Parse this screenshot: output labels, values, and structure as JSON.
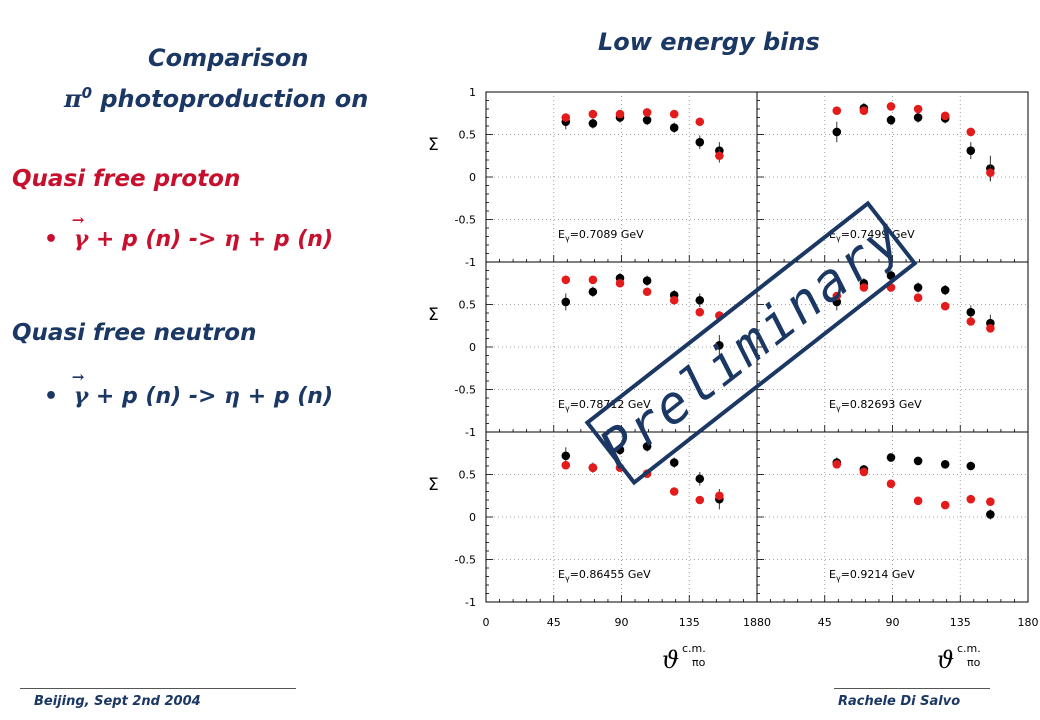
{
  "slide": {
    "top_title": "Low energy bins",
    "comparison_line1": "Comparison",
    "comparison_pi": "π",
    "comparison_sup": "0",
    "comparison_rest": " photoproduction on",
    "section1": "Quasi free proton",
    "section2": "Quasi free neutron",
    "bullet": "•",
    "reaction_gamma": "γ",
    "reaction_mid": " + p (n) -> ",
    "reaction_eta": "η",
    "reaction_end": " + p (n)",
    "watermark": "Preliminary",
    "footer_left": "Beijing, Sept 2nd 2004",
    "footer_right": "Rachele Di Salvo"
  },
  "colors": {
    "navy": "#1b3763",
    "red": "#c8102e",
    "black_series": "#000000",
    "red_series": "#e41b1b",
    "watermark": "#1b3763"
  },
  "chart_data": {
    "type": "scatter",
    "ylabel": "Σ",
    "xlabel_base": "ϑ",
    "xlabel_sup": "c.m.",
    "xlabel_sub": "πο",
    "xlim": [
      0,
      180
    ],
    "ylim": [
      -1,
      1
    ],
    "x_ticks": [
      "0",
      "45",
      "90",
      "135",
      "180"
    ],
    "x_ticks_right": [
      "80",
      "45",
      "90",
      "135",
      "180"
    ],
    "y_ticks": [
      "1",
      "0.5",
      "0",
      "-0.5",
      "-1"
    ],
    "panels": [
      {
        "energy_prefix": "E",
        "energy_sub": "γ",
        "energy_value": "=0.7089 GeV",
        "series": [
          {
            "color": "black",
            "x": [
              53,
              71,
              89,
              107,
              125,
              142,
              155
            ],
            "y": [
              0.65,
              0.63,
              0.7,
              0.67,
              0.58,
              0.41,
              0.31
            ],
            "err": [
              0.09,
              0.06,
              0.06,
              0.06,
              0.06,
              0.08,
              0.1
            ]
          },
          {
            "color": "red",
            "x": [
              53,
              71,
              89,
              107,
              125,
              142,
              155
            ],
            "y": [
              0.7,
              0.74,
              0.74,
              0.76,
              0.74,
              0.65,
              0.25
            ],
            "err": [
              0.04,
              0.03,
              0.03,
              0.03,
              0.03,
              0.04,
              0.08
            ]
          }
        ]
      },
      {
        "energy_prefix": "E",
        "energy_sub": "γ",
        "energy_value": "=0.7499 GeV",
        "series": [
          {
            "color": "black",
            "x": [
              53,
              71,
              89,
              107,
              125,
              142,
              155
            ],
            "y": [
              0.53,
              0.81,
              0.67,
              0.7,
              0.69,
              0.31,
              0.1
            ],
            "err": [
              0.12,
              0.06,
              0.06,
              0.06,
              0.06,
              0.1,
              0.15
            ]
          },
          {
            "color": "red",
            "x": [
              53,
              71,
              89,
              107,
              125,
              142,
              155
            ],
            "y": [
              0.78,
              0.78,
              0.83,
              0.8,
              0.72,
              0.53,
              0.05
            ],
            "err": [
              0.04,
              0.03,
              0.03,
              0.03,
              0.03,
              0.05,
              0.1
            ]
          }
        ]
      },
      {
        "energy_prefix": "E",
        "energy_sub": "γ",
        "energy_value": "=0.78712 GeV",
        "series": [
          {
            "color": "black",
            "x": [
              53,
              71,
              89,
              107,
              125,
              142,
              155
            ],
            "y": [
              0.53,
              0.65,
              0.81,
              0.78,
              0.61,
              0.55,
              0.02
            ],
            "err": [
              0.1,
              0.06,
              0.06,
              0.06,
              0.06,
              0.08,
              0.12
            ]
          },
          {
            "color": "red",
            "x": [
              53,
              71,
              89,
              107,
              125,
              142,
              155
            ],
            "y": [
              0.79,
              0.79,
              0.75,
              0.65,
              0.55,
              0.41,
              0.37
            ],
            "err": [
              0.04,
              0.03,
              0.03,
              0.03,
              0.03,
              0.04,
              0.05
            ]
          }
        ]
      },
      {
        "energy_prefix": "E",
        "energy_sub": "γ",
        "energy_value": "=0.82693 GeV",
        "series": [
          {
            "color": "black",
            "x": [
              53,
              71,
              89,
              107,
              125,
              142,
              155
            ],
            "y": [
              0.53,
              0.75,
              0.84,
              0.7,
              0.67,
              0.41,
              0.28
            ],
            "err": [
              0.1,
              0.06,
              0.06,
              0.06,
              0.06,
              0.08,
              0.1
            ]
          },
          {
            "color": "red",
            "x": [
              53,
              71,
              89,
              107,
              125,
              142,
              155
            ],
            "y": [
              0.6,
              0.7,
              0.7,
              0.58,
              0.48,
              0.3,
              0.22
            ],
            "err": [
              0.04,
              0.03,
              0.03,
              0.03,
              0.03,
              0.04,
              0.05
            ]
          }
        ]
      },
      {
        "energy_prefix": "E",
        "energy_sub": "γ",
        "energy_value": "=0.86455 GeV",
        "series": [
          {
            "color": "black",
            "x": [
              53,
              71,
              89,
              107,
              125,
              142,
              155
            ],
            "y": [
              0.72,
              0.58,
              0.79,
              0.83,
              0.64,
              0.45,
              0.21
            ],
            "err": [
              0.1,
              0.06,
              0.06,
              0.06,
              0.06,
              0.08,
              0.12
            ]
          },
          {
            "color": "red",
            "x": [
              53,
              71,
              89,
              107,
              125,
              142,
              155
            ],
            "y": [
              0.61,
              0.58,
              0.58,
              0.51,
              0.3,
              0.2,
              0.25
            ],
            "err": [
              0.04,
              0.03,
              0.03,
              0.03,
              0.03,
              0.04,
              0.05
            ]
          }
        ]
      },
      {
        "energy_prefix": "E",
        "energy_sub": "γ",
        "energy_value": "=0.9214 GeV",
        "series": [
          {
            "color": "black",
            "x": [
              53,
              71,
              89,
              107,
              125,
              142,
              155
            ],
            "y": [
              0.64,
              0.56,
              0.7,
              0.66,
              0.62,
              0.6,
              0.03
            ],
            "err": [
              0.06,
              0.05,
              0.05,
              0.05,
              0.05,
              0.05,
              0.06
            ]
          },
          {
            "color": "red",
            "x": [
              53,
              71,
              89,
              107,
              125,
              142,
              155
            ],
            "y": [
              0.62,
              0.53,
              0.39,
              0.19,
              0.14,
              0.21,
              0.18
            ],
            "err": [
              0.03,
              0.03,
              0.03,
              0.03,
              0.03,
              0.03,
              0.04
            ]
          }
        ]
      }
    ]
  }
}
